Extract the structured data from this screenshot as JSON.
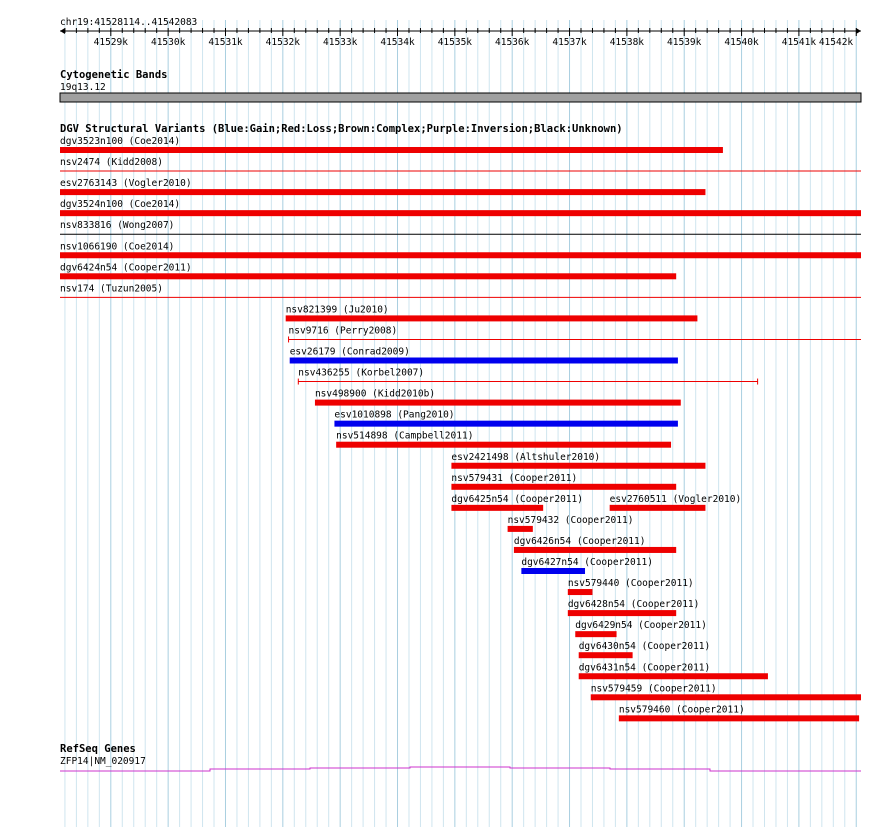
{
  "ruler": {
    "title": "chr19:41528114..41542083",
    "start": 41528114,
    "end": 41542083,
    "ticks": [
      "41529k",
      "41530k",
      "41531k",
      "41532k",
      "41533k",
      "41534k",
      "41535k",
      "41536k",
      "41537k",
      "41538k",
      "41539k",
      "41540k",
      "41541k",
      "41542k"
    ]
  },
  "cytoband": {
    "title": "Cytogenetic Bands",
    "band_label": "19q13.12"
  },
  "dgv": {
    "title": "DGV Structural Variants (Blue:Gain;Red:Loss;Brown:Complex;Purple:Inversion;Black:Unknown)",
    "colors": {
      "gain": "#0000ee",
      "loss": "#ee0000",
      "unknown": "#000000"
    },
    "features": [
      {
        "label": "dgv3523n100 (Coe2014)",
        "start": 41528114,
        "end": 41539675,
        "style": "bar",
        "kind": "loss"
      },
      {
        "label": "nsv2474 (Kidd2008)",
        "start": 41528114,
        "end": 41542083,
        "style": "line",
        "kind": "loss"
      },
      {
        "label": "esv2763143 (Vogler2010)",
        "start": 41528114,
        "end": 41539370,
        "style": "bar",
        "kind": "loss"
      },
      {
        "label": "dgv3524n100 (Coe2014)",
        "start": 41528114,
        "end": 41542083,
        "style": "bar",
        "kind": "loss"
      },
      {
        "label": "nsv833816 (Wong2007)",
        "start": 41528114,
        "end": 41542083,
        "style": "line",
        "kind": "unknown"
      },
      {
        "label": "nsv1066190 (Coe2014)",
        "start": 41528114,
        "end": 41542083,
        "style": "bar",
        "kind": "loss"
      },
      {
        "label": "dgv6424n54 (Cooper2011)",
        "start": 41528114,
        "end": 41538860,
        "style": "bar",
        "kind": "loss"
      },
      {
        "label": "nsv174 (Tuzun2005)",
        "start": 41528114,
        "end": 41542083,
        "style": "line",
        "kind": "loss"
      },
      {
        "label": "nsv821399 (Ju2010)",
        "start": 41532050,
        "end": 41539230,
        "style": "bar",
        "kind": "loss"
      },
      {
        "label": "nsv9716 (Perry2008)",
        "start": 41532100,
        "end": 41542083,
        "style": "line",
        "kind": "loss"
      },
      {
        "label": "esv26179 (Conrad2009)",
        "start": 41532120,
        "end": 41538890,
        "style": "bar",
        "kind": "gain"
      },
      {
        "label": "nsv436255 (Korbel2007)",
        "start": 41532270,
        "end": 41540280,
        "style": "line",
        "kind": "loss"
      },
      {
        "label": "nsv498900 (Kidd2010b)",
        "start": 41532560,
        "end": 41538940,
        "style": "bar",
        "kind": "loss"
      },
      {
        "label": "esv1010898 (Pang2010)",
        "start": 41532900,
        "end": 41538890,
        "style": "bar",
        "kind": "gain"
      },
      {
        "label": "nsv514898 (Campbell2011)",
        "start": 41532930,
        "end": 41538770,
        "style": "bar",
        "kind": "loss"
      },
      {
        "label": "esv2421498 (Altshuler2010)",
        "start": 41534940,
        "end": 41539370,
        "style": "bar",
        "kind": "loss"
      },
      {
        "label": "nsv579431 (Cooper2011)",
        "start": 41534940,
        "end": 41538860,
        "style": "bar",
        "kind": "loss"
      },
      {
        "label": "dgv6425n54 (Cooper2011)",
        "start": 41534940,
        "end": 41536540,
        "style": "bar",
        "kind": "loss"
      },
      {
        "label": "esv2760511 (Vogler2010)",
        "start": 41537700,
        "end": 41539370,
        "style": "bar",
        "kind": "loss"
      },
      {
        "label": "nsv579432 (Cooper2011)",
        "start": 41535920,
        "end": 41536360,
        "style": "bar",
        "kind": "loss"
      },
      {
        "label": "dgv6426n54 (Cooper2011)",
        "start": 41536030,
        "end": 41538860,
        "style": "bar",
        "kind": "loss"
      },
      {
        "label": "dgv6427n54 (Cooper2011)",
        "start": 41536160,
        "end": 41537270,
        "style": "bar",
        "kind": "gain"
      },
      {
        "label": "nsv579440 (Cooper2011)",
        "start": 41536970,
        "end": 41537400,
        "style": "bar",
        "kind": "loss"
      },
      {
        "label": "dgv6428n54 (Cooper2011)",
        "start": 41536970,
        "end": 41538860,
        "style": "bar",
        "kind": "loss"
      },
      {
        "label": "dgv6429n54 (Cooper2011)",
        "start": 41537100,
        "end": 41537820,
        "style": "bar",
        "kind": "loss"
      },
      {
        "label": "dgv6430n54 (Cooper2011)",
        "start": 41537160,
        "end": 41538100,
        "style": "bar",
        "kind": "loss"
      },
      {
        "label": "dgv6431n54 (Cooper2011)",
        "start": 41537160,
        "end": 41540460,
        "style": "bar",
        "kind": "loss"
      },
      {
        "label": "nsv579459 (Cooper2011)",
        "start": 41537370,
        "end": 41542083,
        "style": "bar",
        "kind": "loss"
      },
      {
        "label": "nsv579460 (Cooper2011)",
        "start": 41537860,
        "end": 41542050,
        "style": "bar",
        "kind": "loss"
      }
    ]
  },
  "refseq": {
    "title": "RefSeq Genes",
    "gene_label": "ZFP14|NM_020917",
    "color": "#cc33cc"
  }
}
